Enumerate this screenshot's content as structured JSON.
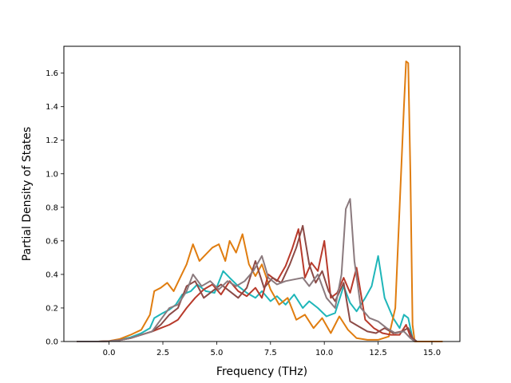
{
  "chart_data": {
    "type": "line",
    "title": "",
    "xlabel": "Frequency (THz)",
    "ylabel": "Partial Density of States",
    "xlim": [
      -2.1,
      16.3
    ],
    "ylim": [
      0.0,
      1.76
    ],
    "xticks": [
      0.0,
      2.5,
      5.0,
      7.5,
      10.0,
      12.5,
      15.0
    ],
    "xtick_labels": [
      "0.0",
      "2.5",
      "5.0",
      "7.5",
      "10.0",
      "12.5",
      "15.0"
    ],
    "yticks": [
      0.0,
      0.2,
      0.4,
      0.6,
      0.8,
      1.0,
      1.2,
      1.4,
      1.6
    ],
    "ytick_labels": [
      "0.0",
      "0.2",
      "0.4",
      "0.6",
      "0.8",
      "1.0",
      "1.2",
      "1.4",
      "1.6"
    ],
    "grid": false,
    "legend": "none",
    "series": [
      {
        "color": "#1fb6b9",
        "points": [
          [
            -1.5,
            0
          ],
          [
            -0.5,
            0
          ],
          [
            0,
            0.002
          ],
          [
            0.5,
            0.01
          ],
          [
            1,
            0.025
          ],
          [
            1.5,
            0.05
          ],
          [
            1.9,
            0.08
          ],
          [
            2.1,
            0.14
          ],
          [
            2.5,
            0.17
          ],
          [
            2.8,
            0.19
          ],
          [
            3.1,
            0.22
          ],
          [
            3.4,
            0.28
          ],
          [
            3.8,
            0.3
          ],
          [
            4.1,
            0.34
          ],
          [
            4.5,
            0.3
          ],
          [
            4.9,
            0.29
          ],
          [
            5.3,
            0.42
          ],
          [
            5.6,
            0.38
          ],
          [
            6,
            0.33
          ],
          [
            6.4,
            0.29
          ],
          [
            6.8,
            0.26
          ],
          [
            7.1,
            0.3
          ],
          [
            7.5,
            0.24
          ],
          [
            7.8,
            0.27
          ],
          [
            8.2,
            0.22
          ],
          [
            8.6,
            0.28
          ],
          [
            9,
            0.2
          ],
          [
            9.3,
            0.24
          ],
          [
            9.7,
            0.2
          ],
          [
            10.1,
            0.15
          ],
          [
            10.5,
            0.17
          ],
          [
            10.9,
            0.33
          ],
          [
            11.2,
            0.23
          ],
          [
            11.5,
            0.18
          ],
          [
            11.9,
            0.26
          ],
          [
            12.2,
            0.33
          ],
          [
            12.5,
            0.51
          ],
          [
            12.8,
            0.26
          ],
          [
            13.2,
            0.14
          ],
          [
            13.5,
            0.08
          ],
          [
            13.7,
            0.16
          ],
          [
            13.9,
            0.14
          ],
          [
            14.1,
            0.02
          ],
          [
            14.3,
            0
          ]
        ]
      },
      {
        "color": "#e07d10",
        "points": [
          [
            -1.5,
            0
          ],
          [
            -0.5,
            0
          ],
          [
            0,
            0.003
          ],
          [
            0.5,
            0.015
          ],
          [
            1,
            0.04
          ],
          [
            1.5,
            0.07
          ],
          [
            1.9,
            0.16
          ],
          [
            2.1,
            0.3
          ],
          [
            2.4,
            0.32
          ],
          [
            2.7,
            0.35
          ],
          [
            3,
            0.3
          ],
          [
            3.3,
            0.38
          ],
          [
            3.6,
            0.46
          ],
          [
            3.9,
            0.58
          ],
          [
            4.2,
            0.48
          ],
          [
            4.5,
            0.52
          ],
          [
            4.8,
            0.56
          ],
          [
            5.1,
            0.58
          ],
          [
            5.4,
            0.48
          ],
          [
            5.6,
            0.6
          ],
          [
            5.9,
            0.53
          ],
          [
            6.2,
            0.64
          ],
          [
            6.5,
            0.46
          ],
          [
            6.8,
            0.39
          ],
          [
            7.1,
            0.46
          ],
          [
            7.5,
            0.31
          ],
          [
            7.9,
            0.22
          ],
          [
            8.3,
            0.26
          ],
          [
            8.7,
            0.13
          ],
          [
            9.1,
            0.16
          ],
          [
            9.5,
            0.08
          ],
          [
            9.9,
            0.14
          ],
          [
            10.3,
            0.05
          ],
          [
            10.7,
            0.15
          ],
          [
            11.1,
            0.07
          ],
          [
            11.5,
            0.02
          ],
          [
            12,
            0.01
          ],
          [
            12.5,
            0.01
          ],
          [
            13,
            0.03
          ],
          [
            13.3,
            0.2
          ],
          [
            13.5,
            0.8
          ],
          [
            13.7,
            1.4
          ],
          [
            13.8,
            1.67
          ],
          [
            13.9,
            1.66
          ],
          [
            14,
            1.0
          ],
          [
            14.1,
            0.1
          ],
          [
            14.2,
            0
          ],
          [
            15.5,
            0
          ]
        ]
      },
      {
        "color": "#b83a2b",
        "points": [
          [
            -1.5,
            0
          ],
          [
            -0.5,
            0
          ],
          [
            0,
            0.002
          ],
          [
            0.5,
            0.008
          ],
          [
            1,
            0.02
          ],
          [
            1.5,
            0.04
          ],
          [
            2,
            0.06
          ],
          [
            2.4,
            0.08
          ],
          [
            2.8,
            0.1
          ],
          [
            3.2,
            0.13
          ],
          [
            3.6,
            0.2
          ],
          [
            4,
            0.26
          ],
          [
            4.4,
            0.31
          ],
          [
            4.8,
            0.34
          ],
          [
            5.2,
            0.28
          ],
          [
            5.6,
            0.36
          ],
          [
            6,
            0.3
          ],
          [
            6.4,
            0.27
          ],
          [
            6.8,
            0.32
          ],
          [
            7.1,
            0.26
          ],
          [
            7.4,
            0.4
          ],
          [
            7.8,
            0.36
          ],
          [
            8.2,
            0.45
          ],
          [
            8.5,
            0.55
          ],
          [
            8.8,
            0.67
          ],
          [
            9.1,
            0.38
          ],
          [
            9.4,
            0.47
          ],
          [
            9.7,
            0.42
          ],
          [
            10,
            0.6
          ],
          [
            10.3,
            0.26
          ],
          [
            10.6,
            0.29
          ],
          [
            10.9,
            0.38
          ],
          [
            11.2,
            0.29
          ],
          [
            11.5,
            0.44
          ],
          [
            11.9,
            0.13
          ],
          [
            12.3,
            0.08
          ],
          [
            12.7,
            0.05
          ],
          [
            13.1,
            0.04
          ],
          [
            13.5,
            0.04
          ],
          [
            13.8,
            0.1
          ],
          [
            14,
            0.03
          ],
          [
            14.2,
            0
          ]
        ]
      },
      {
        "color": "#8c4a46",
        "points": [
          [
            -1.5,
            0
          ],
          [
            -0.5,
            0
          ],
          [
            0,
            0.002
          ],
          [
            0.5,
            0.008
          ],
          [
            1,
            0.02
          ],
          [
            1.5,
            0.04
          ],
          [
            2,
            0.06
          ],
          [
            2.4,
            0.1
          ],
          [
            2.8,
            0.16
          ],
          [
            3.2,
            0.2
          ],
          [
            3.6,
            0.33
          ],
          [
            4,
            0.36
          ],
          [
            4.4,
            0.26
          ],
          [
            4.8,
            0.3
          ],
          [
            5.2,
            0.34
          ],
          [
            5.6,
            0.3
          ],
          [
            6,
            0.26
          ],
          [
            6.4,
            0.32
          ],
          [
            6.8,
            0.48
          ],
          [
            7.2,
            0.32
          ],
          [
            7.6,
            0.38
          ],
          [
            8,
            0.35
          ],
          [
            8.4,
            0.46
          ],
          [
            8.7,
            0.56
          ],
          [
            9,
            0.69
          ],
          [
            9.3,
            0.46
          ],
          [
            9.6,
            0.35
          ],
          [
            9.9,
            0.42
          ],
          [
            10.2,
            0.3
          ],
          [
            10.5,
            0.24
          ],
          [
            10.9,
            0.35
          ],
          [
            11.2,
            0.12
          ],
          [
            11.6,
            0.09
          ],
          [
            12,
            0.06
          ],
          [
            12.4,
            0.05
          ],
          [
            12.8,
            0.08
          ],
          [
            13.2,
            0.05
          ],
          [
            13.6,
            0.06
          ],
          [
            13.9,
            0.08
          ],
          [
            14.1,
            0.02
          ],
          [
            14.3,
            0
          ]
        ]
      },
      {
        "color": "#8b7a7e",
        "points": [
          [
            -1.5,
            0
          ],
          [
            -0.5,
            0
          ],
          [
            0,
            0.002
          ],
          [
            0.5,
            0.008
          ],
          [
            1,
            0.02
          ],
          [
            1.5,
            0.04
          ],
          [
            2,
            0.06
          ],
          [
            2.4,
            0.13
          ],
          [
            2.8,
            0.2
          ],
          [
            3.2,
            0.22
          ],
          [
            3.6,
            0.3
          ],
          [
            3.9,
            0.4
          ],
          [
            4.3,
            0.33
          ],
          [
            4.7,
            0.36
          ],
          [
            5.1,
            0.31
          ],
          [
            5.5,
            0.36
          ],
          [
            5.9,
            0.33
          ],
          [
            6.3,
            0.36
          ],
          [
            6.7,
            0.42
          ],
          [
            7.1,
            0.51
          ],
          [
            7.4,
            0.38
          ],
          [
            7.8,
            0.34
          ],
          [
            8.2,
            0.36
          ],
          [
            8.6,
            0.37
          ],
          [
            9,
            0.38
          ],
          [
            9.3,
            0.33
          ],
          [
            9.7,
            0.4
          ],
          [
            10.1,
            0.26
          ],
          [
            10.5,
            0.2
          ],
          [
            10.8,
            0.4
          ],
          [
            11,
            0.79
          ],
          [
            11.2,
            0.85
          ],
          [
            11.4,
            0.48
          ],
          [
            11.7,
            0.2
          ],
          [
            12.1,
            0.14
          ],
          [
            12.5,
            0.12
          ],
          [
            12.9,
            0.08
          ],
          [
            13.3,
            0.05
          ],
          [
            13.7,
            0.06
          ],
          [
            14,
            0.02
          ],
          [
            14.2,
            0
          ]
        ]
      }
    ]
  }
}
